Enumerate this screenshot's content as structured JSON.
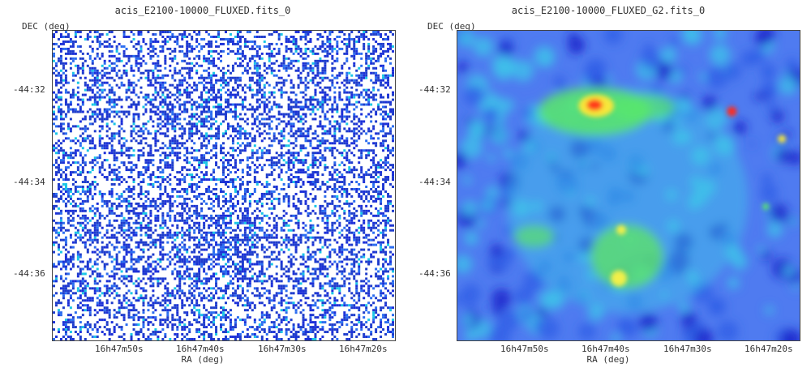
{
  "panels": [
    {
      "title": "acis_E2100-10000_FLUXED.fits_0",
      "ylabel": "DEC (deg)",
      "xlabel": "RA (deg)",
      "yticks": [
        "-44:32",
        "-44:34",
        "-44:36"
      ],
      "xticks": [
        "16h47m50s",
        "16h47m40s",
        "16h47m30s",
        "16h47m20s"
      ],
      "colormap": "sparse blue/cyan noise counts on white"
    },
    {
      "title": "acis_E2100-10000_FLUXED_G2.fits_0",
      "ylabel": "DEC (deg)",
      "xlabel": "RA (deg)",
      "yticks": [
        "-44:32",
        "-44:34",
        "-44:36"
      ],
      "xticks": [
        "16h47m50s",
        "16h47m40s",
        "16h47m30s",
        "16h47m20s"
      ],
      "colormap": "smoothed blue-cyan-green-yellow-red"
    }
  ]
}
